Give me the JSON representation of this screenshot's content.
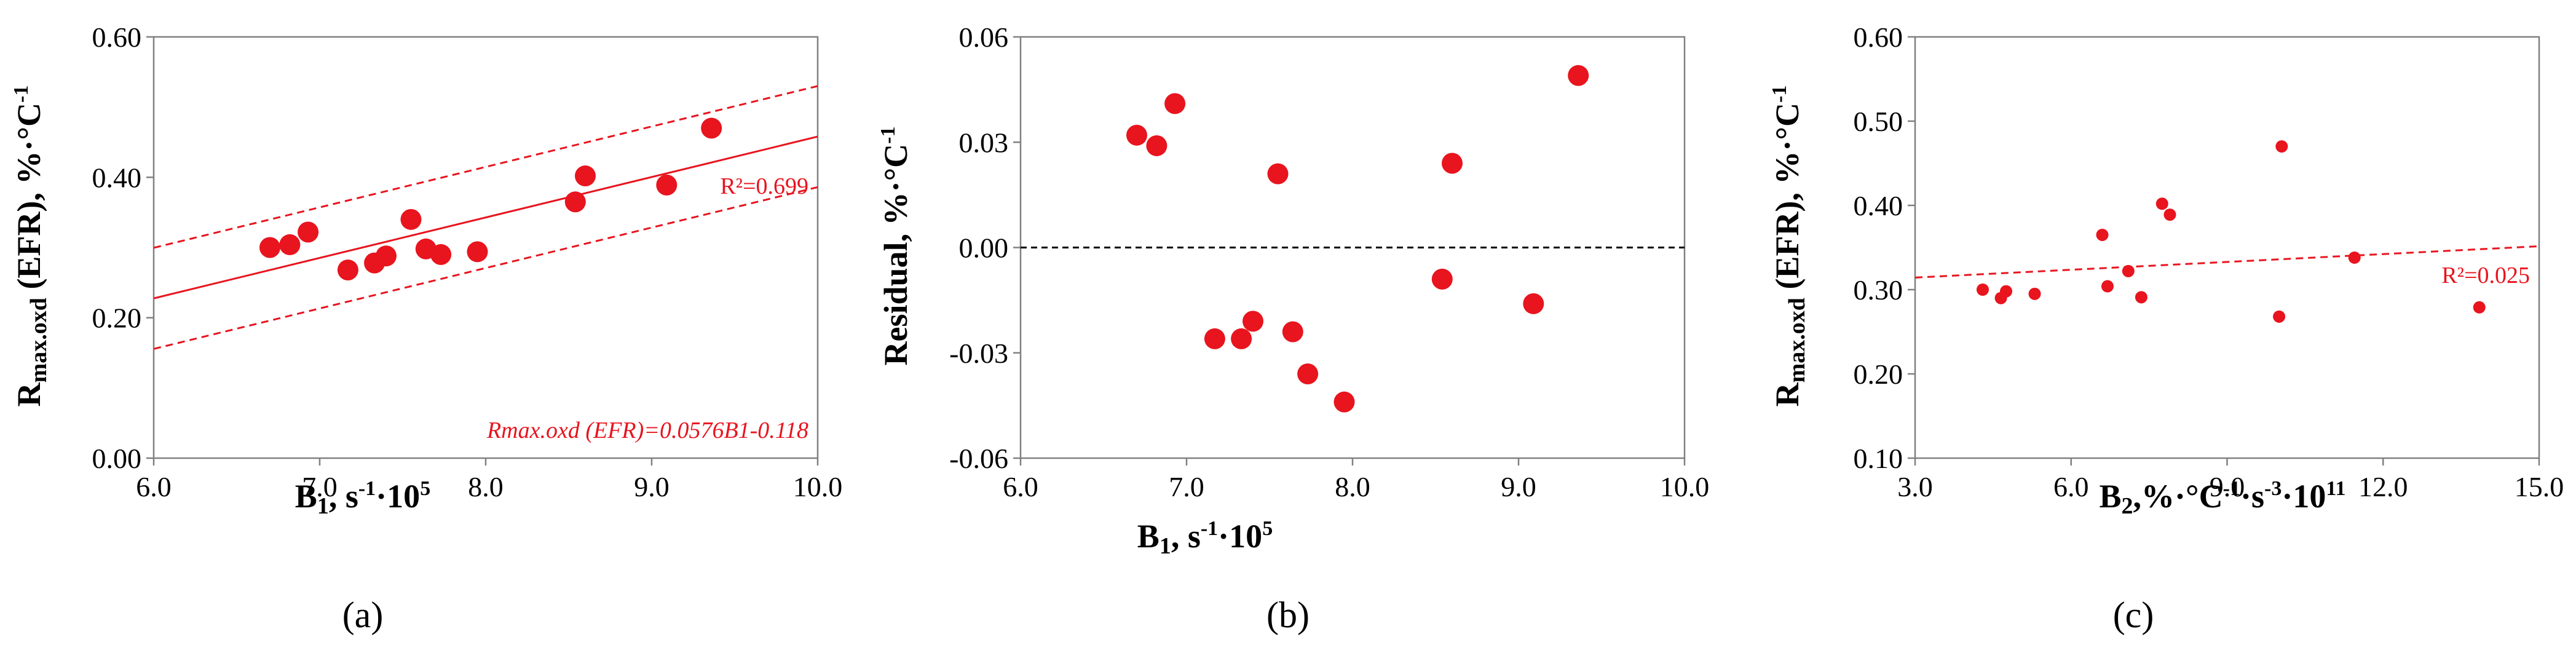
{
  "colors": {
    "marker": "#e8141e",
    "axis": "#808080",
    "text": "#000000",
    "zero_line": "#000000"
  },
  "chart_data": [
    {
      "id": "a",
      "type": "scatter",
      "panel_label": "(a)",
      "xlabel": "B₁, s⁻¹·10⁵",
      "ylabel": "Rmax.oxd (EFR), %·°C⁻¹",
      "xlim": [
        6.0,
        10.0
      ],
      "ylim": [
        0.0,
        0.6
      ],
      "xticks": [
        "6.0",
        "7.0",
        "8.0",
        "9.0",
        "10.0"
      ],
      "yticks": [
        "0.00",
        "0.20",
        "0.40",
        "0.60"
      ],
      "points": [
        {
          "x": 6.7,
          "y": 0.3
        },
        {
          "x": 6.82,
          "y": 0.304
        },
        {
          "x": 6.93,
          "y": 0.322
        },
        {
          "x": 7.17,
          "y": 0.268
        },
        {
          "x": 7.33,
          "y": 0.278
        },
        {
          "x": 7.4,
          "y": 0.288
        },
        {
          "x": 7.55,
          "y": 0.34
        },
        {
          "x": 7.64,
          "y": 0.298
        },
        {
          "x": 7.73,
          "y": 0.29
        },
        {
          "x": 7.95,
          "y": 0.294
        },
        {
          "x": 8.54,
          "y": 0.365
        },
        {
          "x": 8.6,
          "y": 0.402
        },
        {
          "x": 9.09,
          "y": 0.389
        },
        {
          "x": 9.36,
          "y": 0.47
        }
      ],
      "fit": {
        "slope": 0.0576,
        "intercept": -0.118,
        "style": "solid"
      },
      "bands": [
        {
          "slope": 0.0576,
          "intercept": -0.046,
          "style": "dashed"
        },
        {
          "slope": 0.0576,
          "intercept": -0.19,
          "style": "dashed"
        }
      ],
      "annotations": {
        "r2": "R²=0.699",
        "equation": "Rmax.oxd (EFR)=0.0576B1-0.118"
      }
    },
    {
      "id": "b",
      "type": "scatter",
      "panel_label": "(b)",
      "xlabel": "B₁, s⁻¹·10⁵",
      "ylabel": "Residual, %·°C⁻¹",
      "xlim": [
        6.0,
        10.0
      ],
      "ylim": [
        -0.06,
        0.06
      ],
      "xticks": [
        "6.0",
        "7.0",
        "8.0",
        "9.0",
        "10.0"
      ],
      "yticks": [
        "-0.06",
        "-0.03",
        "0.00",
        "0.03",
        "0.06"
      ],
      "zero_line": true,
      "points": [
        {
          "x": 6.7,
          "y": 0.032
        },
        {
          "x": 6.82,
          "y": 0.029
        },
        {
          "x": 6.93,
          "y": 0.041
        },
        {
          "x": 7.17,
          "y": -0.026
        },
        {
          "x": 7.33,
          "y": -0.026
        },
        {
          "x": 7.4,
          "y": -0.021
        },
        {
          "x": 7.55,
          "y": 0.021
        },
        {
          "x": 7.64,
          "y": -0.024
        },
        {
          "x": 7.73,
          "y": -0.036
        },
        {
          "x": 7.95,
          "y": -0.044
        },
        {
          "x": 8.54,
          "y": -0.009
        },
        {
          "x": 8.6,
          "y": 0.024
        },
        {
          "x": 9.09,
          "y": -0.016
        },
        {
          "x": 9.36,
          "y": 0.049
        }
      ]
    },
    {
      "id": "c",
      "type": "scatter",
      "panel_label": "(c)",
      "xlabel": "B₂,%·°C⁻¹·s⁻³·10¹¹",
      "ylabel": "Rmax.oxd (EFR), %·°C⁻¹",
      "xlim": [
        3.0,
        15.0
      ],
      "ylim": [
        0.1,
        0.6
      ],
      "xticks": [
        "3.0",
        "6.0",
        "9.0",
        "12.0",
        "15.0"
      ],
      "yticks": [
        "0.10",
        "0.20",
        "0.30",
        "0.40",
        "0.50",
        "0.60"
      ],
      "points": [
        {
          "x": 4.3,
          "y": 0.3
        },
        {
          "x": 4.65,
          "y": 0.29
        },
        {
          "x": 4.75,
          "y": 0.298
        },
        {
          "x": 5.3,
          "y": 0.295
        },
        {
          "x": 6.6,
          "y": 0.365
        },
        {
          "x": 6.7,
          "y": 0.304
        },
        {
          "x": 7.1,
          "y": 0.322
        },
        {
          "x": 7.35,
          "y": 0.291
        },
        {
          "x": 7.75,
          "y": 0.402
        },
        {
          "x": 7.9,
          "y": 0.389
        },
        {
          "x": 10.0,
          "y": 0.268
        },
        {
          "x": 10.05,
          "y": 0.47
        },
        {
          "x": 11.45,
          "y": 0.338
        },
        {
          "x": 13.85,
          "y": 0.279
        }
      ],
      "trend": {
        "slope": 0.0031,
        "intercept": 0.305,
        "style": "dashed"
      },
      "annotations": {
        "r2": "R²=0.025"
      }
    }
  ]
}
